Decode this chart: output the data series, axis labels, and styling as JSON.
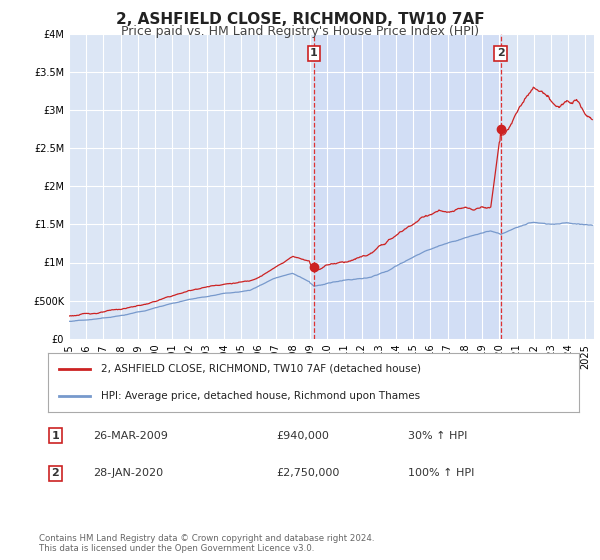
{
  "title": "2, ASHFIELD CLOSE, RICHMOND, TW10 7AF",
  "subtitle": "Price paid vs. HM Land Registry's House Price Index (HPI)",
  "ylim": [
    0,
    4000000
  ],
  "xlim_start": 1995.0,
  "xlim_end": 2025.5,
  "red_line_color": "#cc2222",
  "blue_line_color": "#7799cc",
  "purchase1_date": 2009.23,
  "purchase1_price": 940000,
  "purchase1_label": "1",
  "purchase2_date": 2020.08,
  "purchase2_price": 2750000,
  "purchase2_label": "2",
  "vline_color": "#dd3333",
  "dot_color": "#cc2222",
  "legend_entry1": "2, ASHFIELD CLOSE, RICHMOND, TW10 7AF (detached house)",
  "legend_entry2": "HPI: Average price, detached house, Richmond upon Thames",
  "table_row1": [
    "1",
    "26-MAR-2009",
    "£940,000",
    "30% ↑ HPI"
  ],
  "table_row2": [
    "2",
    "28-JAN-2020",
    "£2,750,000",
    "100% ↑ HPI"
  ],
  "footer": "Contains HM Land Registry data © Crown copyright and database right 2024.\nThis data is licensed under the Open Government Licence v3.0.",
  "background_color": "#ffffff",
  "plot_bg_color": "#dce6f5",
  "shaded_region_color": "#ccdaf0",
  "grid_color": "#ffffff",
  "title_fontsize": 11,
  "subtitle_fontsize": 9,
  "tick_fontsize": 7,
  "yticks": [
    0,
    500000,
    1000000,
    1500000,
    2000000,
    2500000,
    3000000,
    3500000,
    4000000
  ],
  "ytick_labels": [
    "£0",
    "£500K",
    "£1M",
    "£1.5M",
    "£2M",
    "£2.5M",
    "£3M",
    "£3.5M",
    "£4M"
  ]
}
